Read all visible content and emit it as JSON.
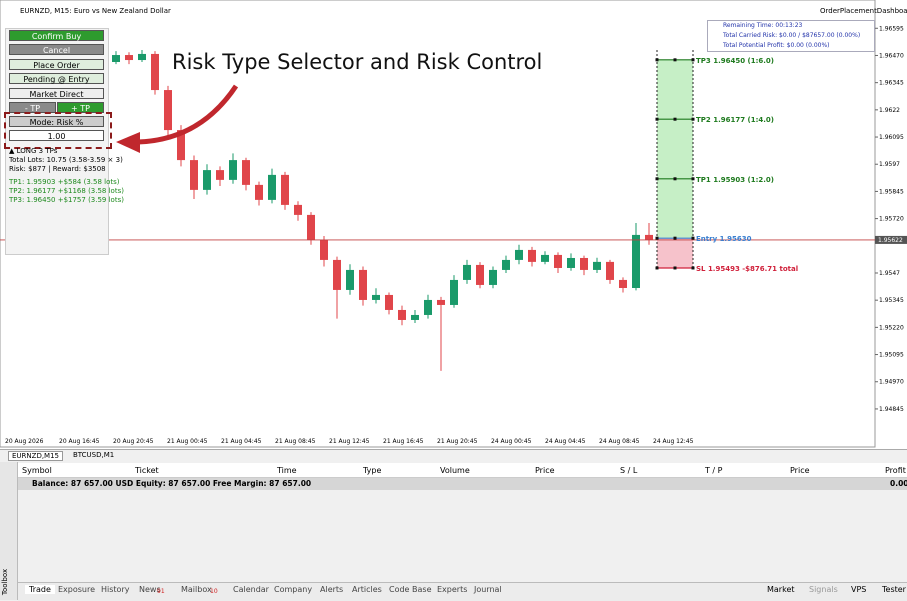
{
  "header": {
    "symbol_title": "EURNZD, M15:  Euro vs New Zealand Dollar",
    "expert_name": "OrderPlacementDashboard"
  },
  "info_box": [
    "Remaining Time: 00:13:23",
    "Total Carried Risk: $0.00 / $87657.00 (0.00%)",
    "Total Potential Profit: $0.00 (0.00%)"
  ],
  "dashboard": {
    "confirm": "Confirm Buy",
    "cancel": "Cancel",
    "place_order": "Place Order",
    "pending": "Pending @ Entry",
    "market": "Market Direct",
    "minus_tp": "- TP",
    "plus_tp": "+ TP",
    "mode": "Mode: Risk %",
    "risk_input": "1.00",
    "summary": [
      "▲ LONG  3 TPs",
      "Total Lots: 10.75 (3.58-3.59 × 3)",
      "Risk: $877 | Reward: $3508"
    ],
    "tps": [
      "TP1: 1.95903  +$584 (3.58 lots)",
      "TP2: 1.96177  +$1168 (3.58 lots)",
      "TP3: 1.96450  +$1757 (3.59 lots)"
    ]
  },
  "annotation": "Risk Type Selector and Risk Control",
  "chart": {
    "type": "candlestick",
    "ylim": [
      1.9467,
      1.96725
    ],
    "yticks": [
      1.96595,
      {
        "value": 1.9647,
        "label": "1.96470"
      },
      1.96345,
      1.9622,
      1.96095,
      1.9597,
      1.95845,
      {
        "value": 1.9572,
        "label": "1.95720"
      },
      1.9547,
      1.95345,
      {
        "value": 1.9522,
        "label": "1.95220"
      },
      1.95095,
      {
        "value": 1.9497,
        "label": "1.94970"
      },
      1.94845
    ],
    "xlabels": [
      "20 Aug 2026",
      "20 Aug 16:45",
      "20 Aug 20:45",
      "21 Aug 00:45",
      "21 Aug 04:45",
      "21 Aug 08:45",
      "21 Aug 12:45",
      "21 Aug 16:45",
      "21 Aug 20:45",
      "24 Aug 00:45",
      "24 Aug 04:45",
      "24 Aug 08:45",
      "24 Aug 12:45"
    ],
    "candles": [
      [
        1.9643,
        1.9647,
        1.9641,
        1.96458
      ],
      [
        1.96458,
        1.965,
        1.9644,
        1.96486
      ],
      [
        1.96486,
        1.96495,
        1.9643,
        1.96449
      ],
      [
        1.96449,
        1.9649,
        1.96435,
        1.96472
      ],
      [
        1.96472,
        1.9652,
        1.9646,
        1.96504
      ],
      [
        1.96504,
        1.96515,
        1.9645,
        1.96467
      ],
      [
        1.96467,
        1.9651,
        1.96455,
        1.96495
      ],
      [
        1.96495,
        1.96505,
        1.96425,
        1.9644
      ],
      [
        1.9644,
        1.9649,
        1.9643,
        1.96472
      ],
      [
        1.96472,
        1.96485,
        1.9643,
        1.96449
      ],
      [
        1.96449,
        1.96495,
        1.9644,
        1.96477
      ],
      [
        1.96477,
        1.9649,
        1.9629,
        1.96311
      ],
      [
        1.96311,
        1.9633,
        1.961,
        1.96127
      ],
      [
        1.96127,
        1.9615,
        1.9596,
        1.95989
      ],
      [
        1.95989,
        1.9601,
        1.9581,
        1.95852
      ],
      [
        1.95852,
        1.9597,
        1.9583,
        1.95943
      ],
      [
        1.95943,
        1.9596,
        1.9587,
        1.95898
      ],
      [
        1.95898,
        1.9602,
        1.9588,
        1.95989
      ],
      [
        1.95989,
        1.96,
        1.9585,
        1.95875
      ],
      [
        1.95875,
        1.9589,
        1.9578,
        1.95806
      ],
      [
        1.95806,
        1.9595,
        1.9579,
        1.95921
      ],
      [
        1.95921,
        1.95935,
        1.9576,
        1.95783
      ],
      [
        1.95783,
        1.958,
        1.9571,
        1.95737
      ],
      [
        1.95737,
        1.9575,
        1.956,
        1.95622
      ],
      [
        1.95622,
        1.9564,
        1.955,
        1.9553
      ],
      [
        1.9553,
        1.95545,
        1.9526,
        1.95392
      ],
      [
        1.95392,
        1.9551,
        1.9537,
        1.95484
      ],
      [
        1.95484,
        1.955,
        1.9532,
        1.95346
      ],
      [
        1.95346,
        1.954,
        1.9533,
        1.95369
      ],
      [
        1.95369,
        1.9538,
        1.9528,
        1.953
      ],
      [
        1.953,
        1.9532,
        1.9523,
        1.95254
      ],
      [
        1.95254,
        1.953,
        1.9524,
        1.95277
      ],
      [
        1.95277,
        1.9537,
        1.9526,
        1.95346
      ],
      [
        1.95346,
        1.9536,
        1.9502,
        1.95323
      ],
      [
        1.95323,
        1.9546,
        1.9531,
        1.95438
      ],
      [
        1.95438,
        1.9553,
        1.9542,
        1.95507
      ],
      [
        1.95507,
        1.9552,
        1.954,
        1.95415
      ],
      [
        1.95415,
        1.955,
        1.954,
        1.95484
      ],
      [
        1.95484,
        1.9555,
        1.9547,
        1.9553
      ],
      [
        1.9553,
        1.956,
        1.9551,
        1.95576
      ],
      [
        1.95576,
        1.9559,
        1.955,
        1.95521
      ],
      [
        1.95521,
        1.9557,
        1.9551,
        1.95553
      ],
      [
        1.95553,
        1.95565,
        1.9547,
        1.95493
      ],
      [
        1.95493,
        1.9556,
        1.9548,
        1.95539
      ],
      [
        1.95539,
        1.9555,
        1.9546,
        1.95484
      ],
      [
        1.95484,
        1.9554,
        1.9547,
        1.95521
      ],
      [
        1.95521,
        1.9553,
        1.9542,
        1.95438
      ],
      [
        1.95438,
        1.9545,
        1.9538,
        1.95401
      ],
      [
        1.95401,
        1.957,
        1.9539,
        1.95645
      ],
      [
        1.95645,
        1.957,
        1.956,
        1.95622
      ]
    ],
    "levels": [
      {
        "label": "TP3 1.96450 (1:6.0)",
        "price": 1.9645,
        "color": "#1e7a1e"
      },
      {
        "label": "TP2 1.96177 (1:4.0)",
        "price": 1.96177,
        "color": "#1e7a1e"
      },
      {
        "label": "TP1 1.95903 (1:2.0)",
        "price": 1.95903,
        "color": "#1e7a1e"
      },
      {
        "label": "Entry 1.95630",
        "price": 1.9563,
        "color": "#3a7fd0"
      },
      {
        "label": "SL 1.95493  -$876.71 total",
        "price": 1.95493,
        "color": "#d0203a"
      }
    ],
    "current_price": {
      "label": "1.95622",
      "price": 1.95622
    },
    "up_color": "#1a9a6a",
    "down_color": "#e0454a"
  },
  "terminal": {
    "chart_tabs": [
      "EURNZD,M15",
      "BTCUSD,M1"
    ],
    "columns": [
      "Symbol",
      "Ticket",
      "Time",
      "Type",
      "Volume",
      "Price",
      "S / L",
      "T / P",
      "Price",
      "Profit"
    ],
    "balance": "Balance: 87 657.00 USD  Equity: 87 657.00  Free Margin: 87 657.00",
    "profit": "0.00",
    "side_label": "Toolbox",
    "tabs": [
      "Trade",
      "Exposure",
      "History",
      "News",
      "Mailbox",
      "Calendar",
      "Company",
      "Alerts",
      "Articles",
      "Code Base",
      "Experts",
      "Journal"
    ],
    "badges": {
      "news": "91",
      "mailbox": "10"
    },
    "right_buttons": [
      "Market",
      "Signals",
      "VPS",
      "Tester"
    ]
  }
}
